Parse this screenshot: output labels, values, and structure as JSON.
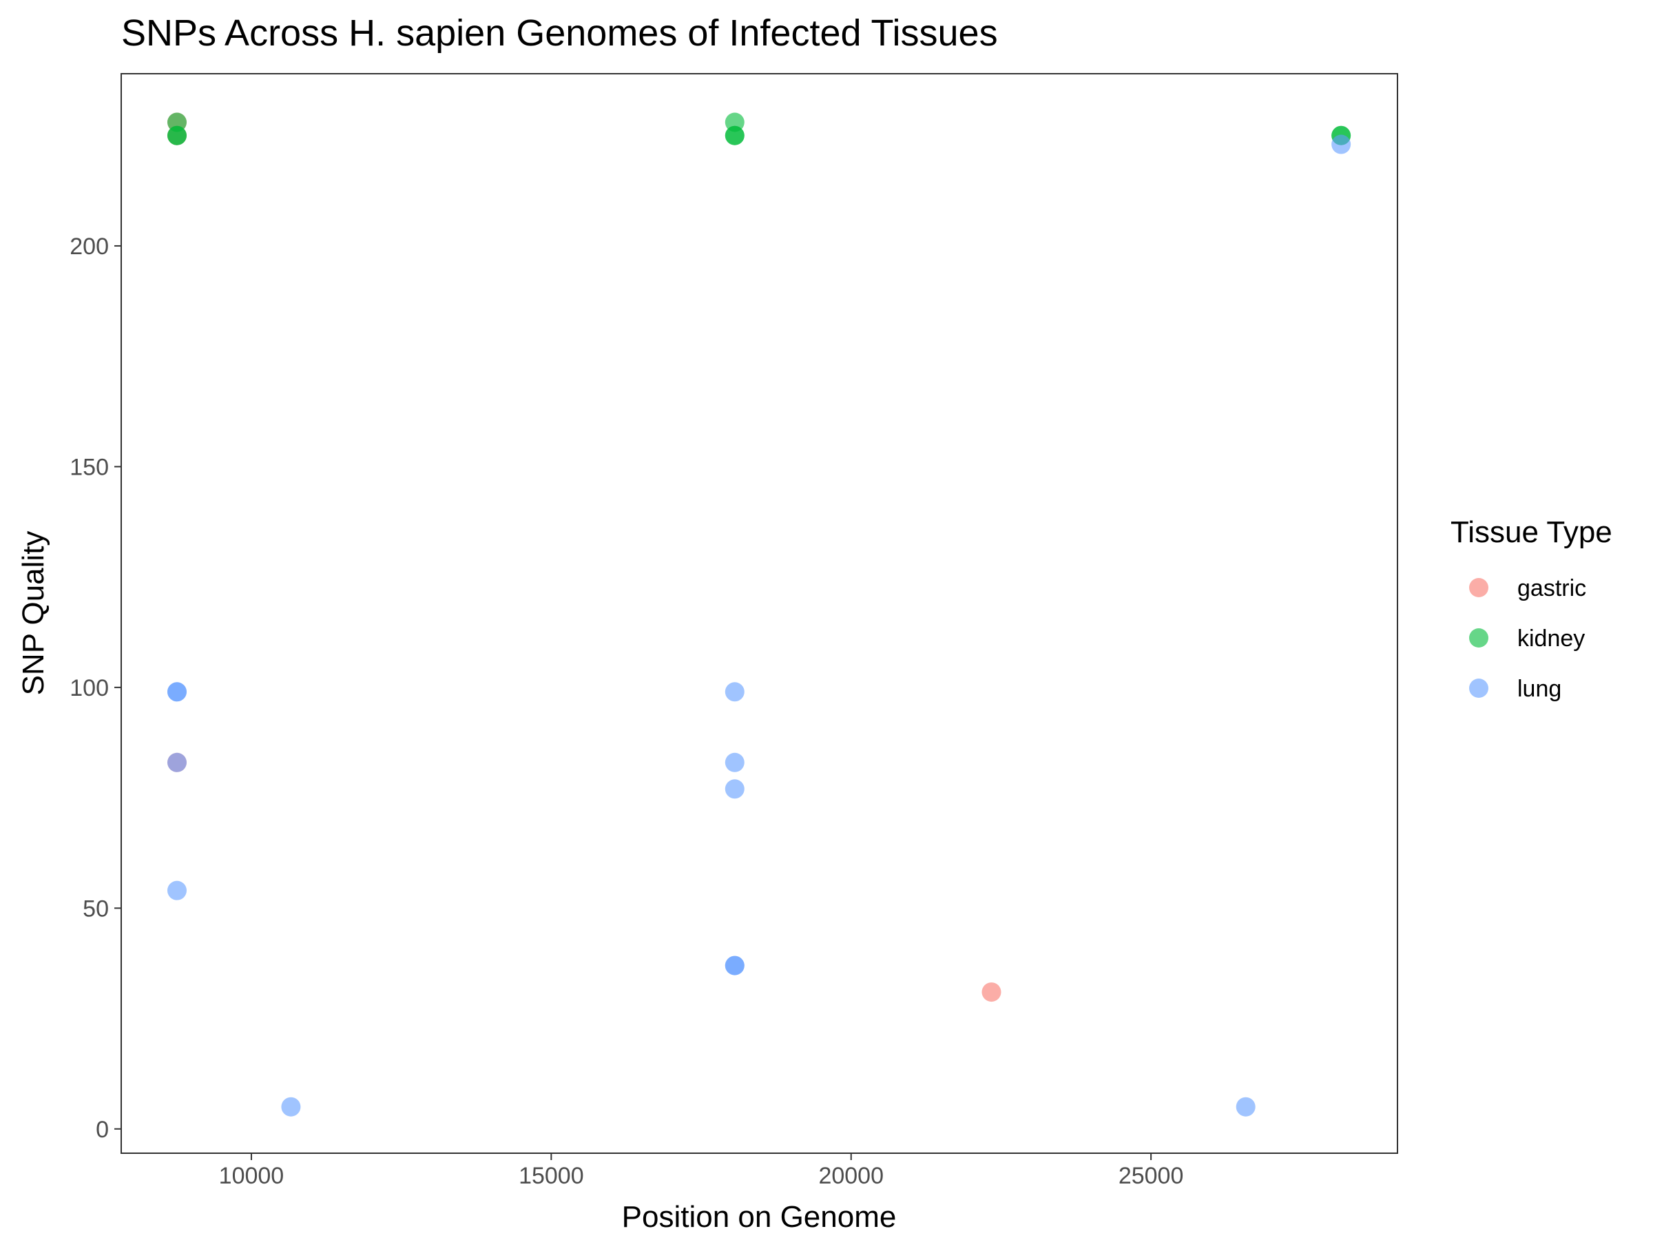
{
  "chart_data": {
    "type": "scatter",
    "title": "SNPs Across H. sapien Genomes of Infected Tissues",
    "xlabel": "Position on Genome",
    "ylabel": "SNP Quality",
    "xlim": [
      7830,
      29110
    ],
    "ylim": [
      -5.5,
      239
    ],
    "x_ticks": [
      10000,
      15000,
      20000,
      25000
    ],
    "x_tick_labels": [
      "10000",
      "15000",
      "20000",
      "25000"
    ],
    "y_ticks": [
      0,
      50,
      100,
      150,
      200
    ],
    "y_tick_labels": [
      "0",
      "50",
      "100",
      "150",
      "200"
    ],
    "grid": false,
    "legend": {
      "title": "Tissue Type",
      "position": "right"
    },
    "series": [
      {
        "name": "gastric",
        "color": "#F8766D",
        "points": [
          {
            "x": 8760,
            "y": 228
          },
          {
            "x": 8760,
            "y": 225
          },
          {
            "x": 8760,
            "y": 83
          },
          {
            "x": 22340,
            "y": 31
          }
        ]
      },
      {
        "name": "kidney",
        "color": "#00BA38",
        "points": [
          {
            "x": 8760,
            "y": 228
          },
          {
            "x": 8760,
            "y": 225
          },
          {
            "x": 8760,
            "y": 225
          },
          {
            "x": 18060,
            "y": 228
          },
          {
            "x": 18060,
            "y": 225
          },
          {
            "x": 18060,
            "y": 225
          },
          {
            "x": 28170,
            "y": 225
          },
          {
            "x": 28170,
            "y": 225
          }
        ]
      },
      {
        "name": "lung",
        "color": "#619CFF",
        "points": [
          {
            "x": 8760,
            "y": 99
          },
          {
            "x": 8760,
            "y": 99
          },
          {
            "x": 8760,
            "y": 83
          },
          {
            "x": 8760,
            "y": 54
          },
          {
            "x": 10660,
            "y": 5
          },
          {
            "x": 18060,
            "y": 99
          },
          {
            "x": 18060,
            "y": 83
          },
          {
            "x": 18060,
            "y": 77
          },
          {
            "x": 18060,
            "y": 37
          },
          {
            "x": 18060,
            "y": 37
          },
          {
            "x": 26580,
            "y": 5
          },
          {
            "x": 28170,
            "y": 223
          }
        ]
      }
    ]
  }
}
